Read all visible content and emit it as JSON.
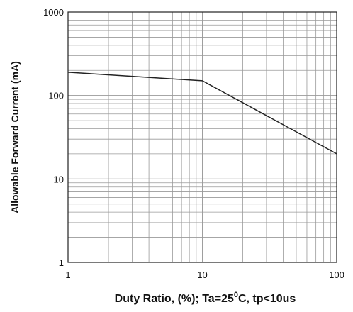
{
  "chart_data": {
    "type": "line",
    "xlabel": {
      "main": "Duty Ratio, (%); Ta=25",
      "sup": "0",
      "tail": "C, tp<10us"
    },
    "ylabel": "Allowable Forward Current (mA)",
    "x_scale": "log",
    "y_scale": "log",
    "xlim": [
      1,
      100
    ],
    "ylim": [
      1,
      1000
    ],
    "grid": true,
    "x_tick_labels": [
      "1",
      "10",
      "100"
    ],
    "y_tick_labels": [
      "1",
      "10",
      "100",
      "1000"
    ],
    "series": [
      {
        "x": [
          1,
          10,
          100
        ],
        "y": [
          190,
          150,
          20
        ]
      }
    ]
  }
}
